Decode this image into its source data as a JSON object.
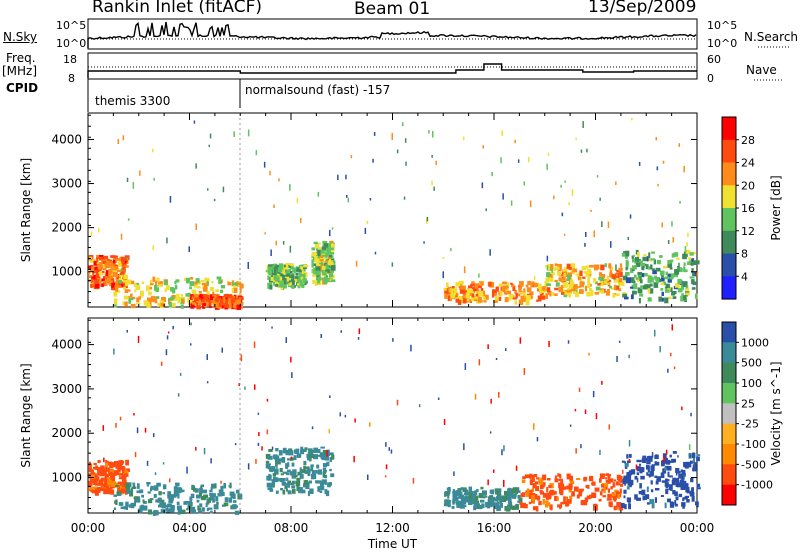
{
  "header": {
    "title": "Rankin Inlet (fitACF)",
    "beam": "Beam 01",
    "date": "13/Sep/2009"
  },
  "strips": {
    "nsky_label": "N.Sky",
    "nsky_tick_top": "10^5",
    "nsky_tick_bottom": "10^0",
    "nsearch_label": "N.Search",
    "nsearch_tick_top": "10^5",
    "nsearch_tick_bottom": "10^0",
    "freq_label_top": "Freq.",
    "freq_label_bottom": "[MHz]",
    "freq_tick_top": "18",
    "freq_tick_bottom": "8",
    "nave_label": "Nave",
    "nave_tick_top": "60",
    "nave_tick_bottom": "0",
    "cpid_label": "CPID",
    "cpid_first": "themis 3300",
    "cpid_second": "normalsound (fast) -157"
  },
  "colors": {
    "power_scale": [
      "#1f1fff",
      "#2a4fa8",
      "#3f8a5a",
      "#5fc35f",
      "#f0e030",
      "#ff8c1a",
      "#ff4a10",
      "#ff0000"
    ],
    "velocity_scale": [
      "#2a4fa8",
      "#3a8a9a",
      "#3f8a5a",
      "#5fc35f",
      "#c0c0c0",
      "#ffb020",
      "#ff8a00",
      "#ff4a10",
      "#ff0000"
    ]
  },
  "chart_data": [
    {
      "type": "heatmap",
      "name": "power",
      "xlabel": "",
      "ylabel": "Slant Range [km]",
      "xlim": [
        "00:00",
        "24:00"
      ],
      "ylim": [
        200,
        4600
      ],
      "yticks": [
        "1000",
        "2000",
        "3000",
        "4000"
      ],
      "colorbar": {
        "label": "Power [dB]",
        "ticks": [
          "28",
          "24",
          "20",
          "16",
          "12",
          "8",
          "4"
        ],
        "range": [
          0,
          32
        ]
      },
      "echo_regions": [
        {
          "t0": 0.0,
          "t1": 1.5,
          "r0": 700,
          "r1": 1400,
          "level": 24
        },
        {
          "t0": 1.0,
          "t1": 6.0,
          "r0": 250,
          "r1": 900,
          "level": 18
        },
        {
          "t0": 4.0,
          "t1": 6.0,
          "r0": 250,
          "r1": 500,
          "level": 26
        },
        {
          "t0": 7.0,
          "t1": 8.5,
          "r0": 700,
          "r1": 1200,
          "level": 14
        },
        {
          "t0": 8.8,
          "t1": 9.6,
          "r0": 800,
          "r1": 1700,
          "level": 16
        },
        {
          "t0": 14.0,
          "t1": 18.0,
          "r0": 350,
          "r1": 800,
          "level": 22
        },
        {
          "t0": 18.0,
          "t1": 21.0,
          "r0": 500,
          "r1": 1200,
          "level": 20
        },
        {
          "t0": 21.0,
          "t1": 24.0,
          "r0": 400,
          "r1": 1500,
          "level": 12
        }
      ]
    },
    {
      "type": "heatmap",
      "name": "velocity",
      "xlabel": "Time UT",
      "ylabel": "Slant Range [km]",
      "xlim": [
        "00:00",
        "24:00"
      ],
      "xticks": [
        "00:00",
        "04:00",
        "08:00",
        "12:00",
        "16:00",
        "20:00",
        "00:00"
      ],
      "ylim": [
        200,
        4600
      ],
      "yticks": [
        "1000",
        "2000",
        "3000",
        "4000"
      ],
      "colorbar": {
        "label": "Velocity [m s^-1]",
        "ticks": [
          "1000",
          "500",
          "100",
          "25",
          "-25",
          "-100",
          "-500",
          "-1000"
        ],
        "range": [
          -1000,
          1000
        ]
      },
      "echo_regions": [
        {
          "t0": 0.0,
          "t1": 1.5,
          "r0": 700,
          "r1": 1400,
          "level": -100
        },
        {
          "t0": 1.0,
          "t1": 6.0,
          "r0": 250,
          "r1": 900,
          "level": 100
        },
        {
          "t0": 7.0,
          "t1": 9.6,
          "r0": 700,
          "r1": 1700,
          "level": 100
        },
        {
          "t0": 14.0,
          "t1": 17.0,
          "r0": 350,
          "r1": 800,
          "level": 100
        },
        {
          "t0": 17.0,
          "t1": 21.0,
          "r0": 350,
          "r1": 1100,
          "level": -100
        },
        {
          "t0": 21.0,
          "t1": 24.0,
          "r0": 400,
          "r1": 1600,
          "level": 500
        }
      ]
    }
  ]
}
